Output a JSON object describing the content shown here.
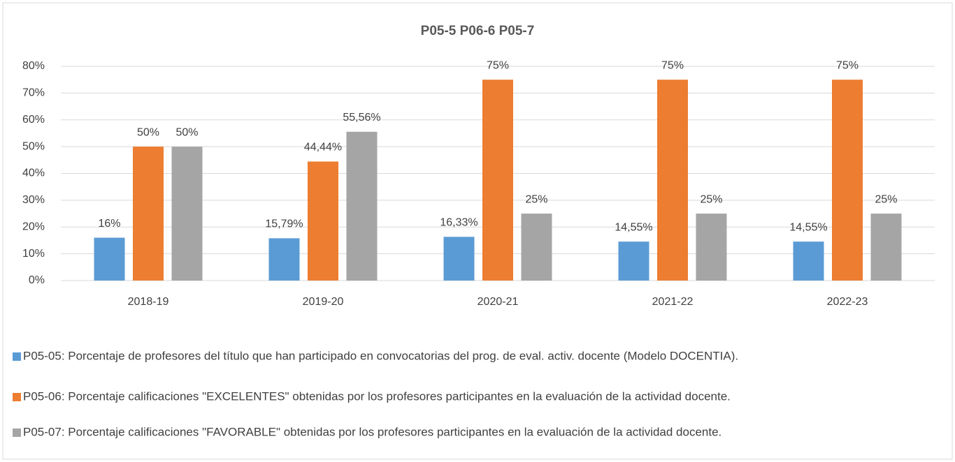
{
  "chart_data": {
    "type": "bar",
    "title": "P05-5  P06-6  P05-7",
    "categories": [
      "2018-19",
      "2019-20",
      "2020-21",
      "2021-22",
      "2022-23"
    ],
    "series": [
      {
        "name": "P05-05: Porcentaje de profesores del título que han participado en convocatorias del prog. de eval. activ. docente (Modelo DOCENTIA).",
        "color": "#5b9bd5",
        "values": [
          16,
          15.79,
          16.33,
          14.55,
          14.55
        ],
        "value_labels": [
          "16%",
          "15,79%",
          "16,33%",
          "14,55%",
          "14,55%"
        ]
      },
      {
        "name": "P05-06: Porcentaje calificaciones \"EXCELENTES\" obtenidas por los profesores participantes en la evaluación de la actividad docente.",
        "color": "#ed7d31",
        "values": [
          50,
          44.44,
          75,
          75,
          75
        ],
        "value_labels": [
          "50%",
          "44,44%",
          "75%",
          "75%",
          "75%"
        ]
      },
      {
        "name": "P05-07: Porcentaje calificaciones \"FAVORABLE\" obtenidas por los profesores participantes en la evaluación de la actividad docente.",
        "color": "#a5a5a5",
        "values": [
          50,
          55.56,
          25,
          25,
          25
        ],
        "value_labels": [
          "50%",
          "55,56%",
          "25%",
          "25%",
          "25%"
        ]
      }
    ],
    "ylim": [
      0,
      80
    ],
    "yticks": [
      {
        "value": 0,
        "label": "0%"
      },
      {
        "value": 10,
        "label": "10%"
      },
      {
        "value": 20,
        "label": "20%"
      },
      {
        "value": 30,
        "label": "30%"
      },
      {
        "value": 40,
        "label": "40%"
      },
      {
        "value": 50,
        "label": "50%"
      },
      {
        "value": 60,
        "label": "60%"
      },
      {
        "value": 70,
        "label": "70%"
      },
      {
        "value": 80,
        "label": "80%"
      }
    ],
    "grid": true,
    "legend": "bottom"
  }
}
